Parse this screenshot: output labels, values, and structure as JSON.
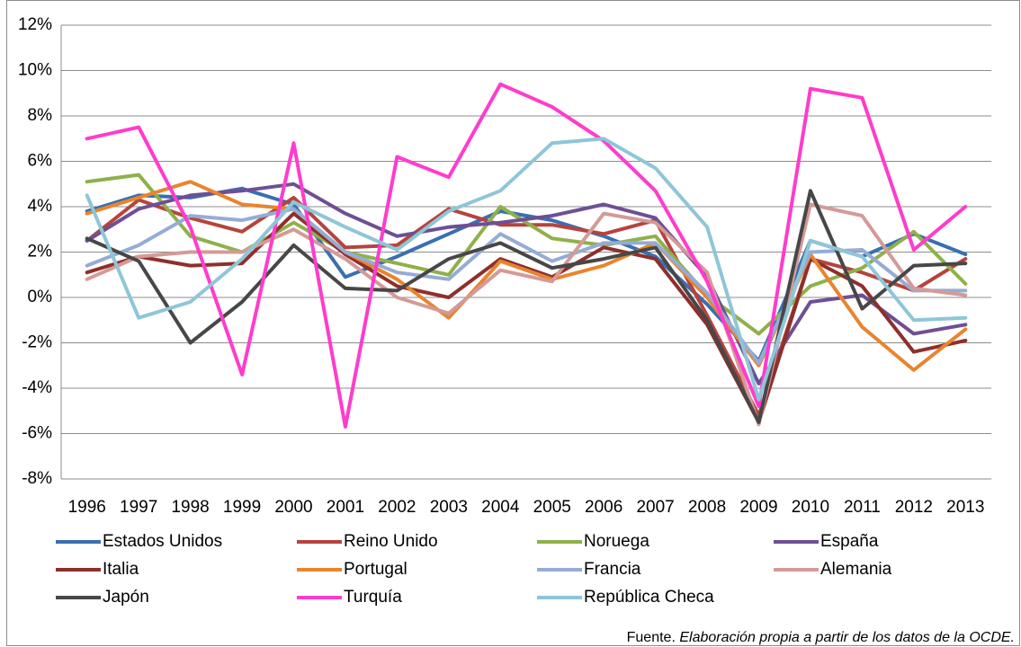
{
  "chart_data": {
    "type": "line",
    "categories": [
      "1996",
      "1997",
      "1998",
      "1999",
      "2000",
      "2001",
      "2002",
      "2003",
      "2004",
      "2005",
      "2006",
      "2007",
      "2008",
      "2009",
      "2010",
      "2011",
      "2012",
      "2013"
    ],
    "ylim": [
      -8,
      12
    ],
    "yticks": [
      {
        "value": -8,
        "label": "-8%"
      },
      {
        "value": -6,
        "label": "-6%"
      },
      {
        "value": -4,
        "label": "-4%"
      },
      {
        "value": -2,
        "label": "-2%"
      },
      {
        "value": 0,
        "label": "0%"
      },
      {
        "value": 2,
        "label": "2%"
      },
      {
        "value": 4,
        "label": "4%"
      },
      {
        "value": 6,
        "label": "6%"
      },
      {
        "value": 8,
        "label": "8%"
      },
      {
        "value": 10,
        "label": "10%"
      },
      {
        "value": 12,
        "label": "12%"
      }
    ],
    "grid": true,
    "legend": "bottom",
    "series": [
      {
        "name": "Estados Unidos",
        "color": "#3a6fb0",
        "values": [
          3.8,
          4.5,
          4.4,
          4.8,
          4.1,
          0.9,
          1.8,
          2.8,
          3.8,
          3.4,
          2.7,
          1.8,
          -0.3,
          -2.8,
          2.5,
          1.8,
          2.8,
          1.9
        ]
      },
      {
        "name": "Reino Unido",
        "color": "#b5443d",
        "values": [
          2.5,
          4.3,
          3.5,
          2.9,
          4.4,
          2.2,
          2.3,
          3.9,
          3.2,
          3.2,
          2.8,
          3.4,
          -0.8,
          -5.2,
          1.7,
          1.1,
          0.3,
          1.7
        ]
      },
      {
        "name": "Noruega",
        "color": "#8fb04a",
        "values": [
          5.1,
          5.4,
          2.7,
          2.0,
          3.3,
          2.0,
          1.5,
          1.0,
          4.0,
          2.6,
          2.3,
          2.7,
          0.1,
          -1.6,
          0.5,
          1.3,
          2.9,
          0.6
        ]
      },
      {
        "name": "España",
        "color": "#6e4f94",
        "values": [
          2.5,
          3.9,
          4.5,
          4.7,
          5.0,
          3.7,
          2.7,
          3.1,
          3.3,
          3.6,
          4.1,
          3.5,
          0.9,
          -3.8,
          -0.2,
          0.1,
          -1.6,
          -1.2
        ]
      },
      {
        "name": "Italia",
        "color": "#8e2f2c",
        "values": [
          1.1,
          1.8,
          1.4,
          1.5,
          3.7,
          1.9,
          0.5,
          0.0,
          1.7,
          0.9,
          2.2,
          1.7,
          -1.2,
          -5.5,
          1.7,
          0.5,
          -2.4,
          -1.9
        ]
      },
      {
        "name": "Portugal",
        "color": "#e8852e",
        "values": [
          3.7,
          4.4,
          5.1,
          4.1,
          3.9,
          2.0,
          0.8,
          -0.9,
          1.6,
          0.8,
          1.4,
          2.4,
          0.0,
          -3.0,
          1.9,
          -1.3,
          -3.2,
          -1.4
        ]
      },
      {
        "name": "Francia",
        "color": "#95acd5",
        "values": [
          1.4,
          2.3,
          3.6,
          3.4,
          3.9,
          2.0,
          1.1,
          0.8,
          2.8,
          1.6,
          2.4,
          2.4,
          0.2,
          -2.9,
          2.0,
          2.1,
          0.3,
          0.3
        ]
      },
      {
        "name": "Alemania",
        "color": "#d49a98",
        "values": [
          0.8,
          1.8,
          2.0,
          2.0,
          3.0,
          1.7,
          0.0,
          -0.7,
          1.2,
          0.7,
          3.7,
          3.3,
          1.1,
          -5.6,
          4.1,
          3.6,
          0.4,
          0.1
        ]
      },
      {
        "name": "Japón",
        "color": "#474747",
        "values": [
          2.6,
          1.6,
          -2.0,
          -0.2,
          2.3,
          0.4,
          0.3,
          1.7,
          2.4,
          1.3,
          1.7,
          2.2,
          -1.0,
          -5.5,
          4.7,
          -0.5,
          1.4,
          1.5
        ]
      },
      {
        "name": "Turquía",
        "color": "#ff3ccc",
        "values": [
          7.0,
          7.5,
          3.1,
          -3.4,
          6.8,
          -5.7,
          6.2,
          5.3,
          9.4,
          8.4,
          6.9,
          4.7,
          0.7,
          -4.8,
          9.2,
          8.8,
          2.1,
          4.0
        ]
      },
      {
        "name": "República Checa",
        "color": "#8ec6d8",
        "values": [
          4.5,
          -0.9,
          -0.2,
          1.7,
          4.2,
          3.1,
          2.1,
          3.8,
          4.7,
          6.8,
          7.0,
          5.7,
          3.1,
          -4.5,
          2.5,
          1.8,
          -1.0,
          -0.9
        ]
      }
    ],
    "source": {
      "label": "Fuente.",
      "text": "Elaboración propia a partir de los datos de la OCDE."
    }
  }
}
